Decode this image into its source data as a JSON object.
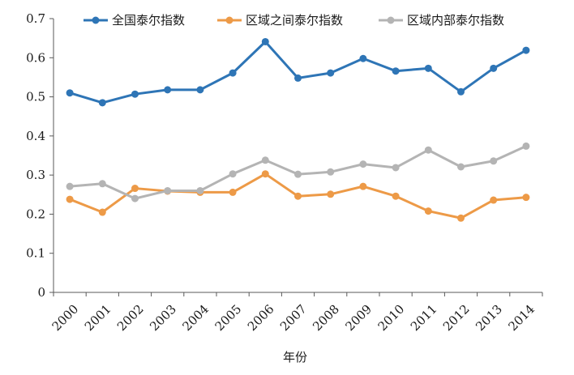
{
  "chart_data": {
    "type": "line",
    "title": "",
    "xlabel": "年份",
    "ylabel": "",
    "categories": [
      "2000",
      "2001",
      "2002",
      "2003",
      "2004",
      "2005",
      "2006",
      "2007",
      "2008",
      "2009",
      "2010",
      "2011",
      "2012",
      "2013",
      "2014"
    ],
    "ylim": [
      0,
      0.7
    ],
    "yticks": [
      "0",
      "0.1",
      "0.2",
      "0.3",
      "0.4",
      "0.5",
      "0.6",
      "0.7"
    ],
    "grid": false,
    "legend_position": "top",
    "series": [
      {
        "name": "全国泰尔指数",
        "color": "#2e75b6",
        "values": [
          0.51,
          0.485,
          0.507,
          0.518,
          0.518,
          0.561,
          0.641,
          0.548,
          0.561,
          0.598,
          0.566,
          0.573,
          0.513,
          0.573,
          0.619
        ]
      },
      {
        "name": "区域之间泰尔指数",
        "color": "#ed9a47",
        "values": [
          0.238,
          0.205,
          0.266,
          0.259,
          0.256,
          0.256,
          0.303,
          0.246,
          0.251,
          0.271,
          0.246,
          0.208,
          0.19,
          0.236,
          0.243
        ]
      },
      {
        "name": "区域内部泰尔指数",
        "color": "#b4b4b4",
        "values": [
          0.271,
          0.278,
          0.24,
          0.26,
          0.26,
          0.303,
          0.338,
          0.302,
          0.308,
          0.328,
          0.319,
          0.364,
          0.321,
          0.336,
          0.374
        ]
      }
    ]
  }
}
